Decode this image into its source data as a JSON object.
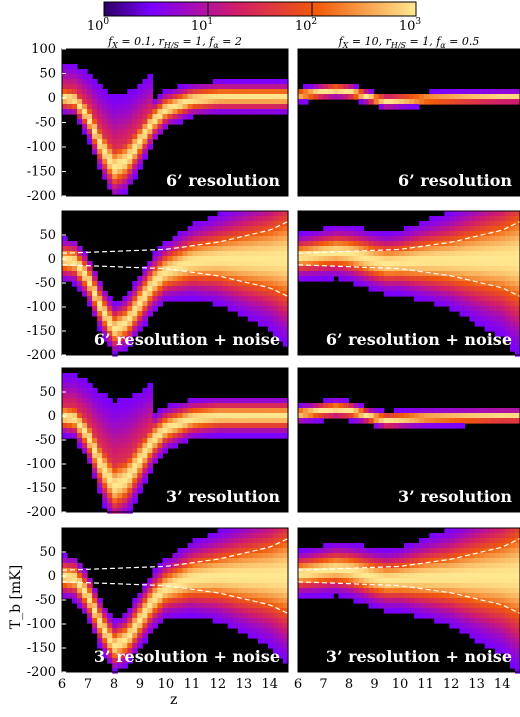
{
  "chart_data": {
    "type": "heatmap",
    "colorbar": {
      "scale": "log",
      "range": [
        1,
        1000
      ],
      "tick_labels": [
        "10^0",
        "10^1",
        "10^2",
        "10^3"
      ],
      "colors": [
        "#2a0060",
        "#7a00ff",
        "#d01c6c",
        "#f05a0a",
        "#ffe890"
      ]
    },
    "xlabel": "z",
    "ylabel": "T_b [mK]",
    "xlim": [
      6,
      14.7
    ],
    "ylim": [
      -200,
      100
    ],
    "x_ticks": [
      "6",
      "7",
      "8",
      "9",
      "10",
      "11",
      "12",
      "13",
      "14"
    ],
    "y_ticks": [
      "100",
      "50",
      "0",
      "-50",
      "-100",
      "-150",
      "-200"
    ],
    "columns": [
      {
        "title_parts": [
          "f",
          "X",
          " = 0.1, ",
          "r",
          "H/S",
          " = 1, ",
          "f",
          "α",
          " = 2"
        ]
      },
      {
        "title_parts": [
          "f",
          "X",
          " = 10, ",
          "r",
          "H/S",
          " = 1, ",
          "f",
          "α",
          " = 0.5"
        ]
      }
    ],
    "rows": [
      {
        "label": "6’ resolution",
        "noise_band": false
      },
      {
        "label": "6’ resolution + noise",
        "noise_band": true
      },
      {
        "label": "3’ resolution",
        "noise_band": false
      },
      {
        "label": "3’ resolution + noise",
        "noise_band": true
      }
    ],
    "mean_track": [
      {
        "name": "left",
        "x": [
          6,
          6.5,
          7,
          7.5,
          8,
          8.5,
          9,
          9.5,
          10,
          11,
          12,
          13,
          14,
          14.7
        ],
        "y": [
          0,
          -5,
          -40,
          -100,
          -145,
          -130,
          -90,
          -50,
          -25,
          -5,
          0,
          0,
          0,
          0
        ]
      },
      {
        "name": "right",
        "x": [
          6,
          6.5,
          7,
          7.5,
          8,
          8.5,
          9,
          9.5,
          10,
          11,
          12,
          13,
          14,
          14.7
        ],
        "y": [
          5,
          8,
          12,
          15,
          12,
          5,
          -3,
          -8,
          -6,
          -3,
          -2,
          -1,
          0,
          0
        ]
      }
    ],
    "noise_band_upper": {
      "x": [
        6,
        8,
        10,
        12,
        14,
        14.7
      ],
      "y": [
        12,
        16,
        20,
        35,
        60,
        78
      ]
    }
  }
}
